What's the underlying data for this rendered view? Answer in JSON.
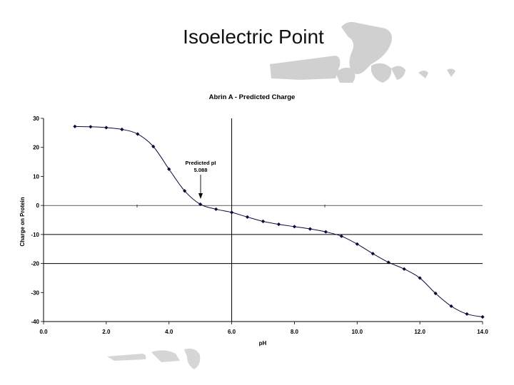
{
  "slide": {
    "title": "Isoelectric Point"
  },
  "chart_data": {
    "type": "scatter",
    "title": "Abrin A - Predicted Charge",
    "xlabel": "pH",
    "ylabel": "Charge on Protein",
    "xlim": [
      0,
      14
    ],
    "ylim": [
      -40,
      30
    ],
    "x_ticks": [
      "0.0",
      "2.0",
      "4.0",
      "6.0",
      "8.0",
      "10.0",
      "12.0",
      "14.0"
    ],
    "y_ticks": [
      "30",
      "20",
      "10",
      "0",
      "-10",
      "-20",
      "-30",
      "-40"
    ],
    "x_tick_values": [
      0,
      2,
      4,
      6,
      8,
      10,
      12,
      14
    ],
    "y_tick_values": [
      30,
      20,
      10,
      0,
      -10,
      -20,
      -30,
      -40
    ],
    "reference_lines": {
      "x": [
        6
      ],
      "y": [
        -10,
        -20
      ]
    },
    "series": [
      {
        "x": [
          1.0,
          1.5,
          2.0,
          2.5,
          3.0,
          3.5,
          4.0,
          4.5,
          5.0,
          5.5,
          6.0,
          6.5,
          7.0,
          7.5,
          8.0,
          8.5,
          9.0,
          9.5,
          10.0,
          10.5,
          11.0,
          11.5,
          12.0,
          12.5,
          13.0,
          13.5,
          14.0
        ],
        "y": [
          27.2,
          27.1,
          26.8,
          26.2,
          24.6,
          20.3,
          12.5,
          5.0,
          0.4,
          -1.3,
          -2.4,
          -4.0,
          -5.5,
          -6.5,
          -7.3,
          -8.1,
          -9.1,
          -10.6,
          -13.3,
          -16.6,
          -19.6,
          -21.9,
          -25.0,
          -30.3,
          -34.7,
          -37.4,
          -38.4
        ],
        "color": "#0a0a3c"
      }
    ],
    "annotation": {
      "lines": [
        "Predicted pI",
        "5.088"
      ],
      "target_x": 5.088,
      "target_y": 0
    },
    "grid": false,
    "legend": "none"
  }
}
